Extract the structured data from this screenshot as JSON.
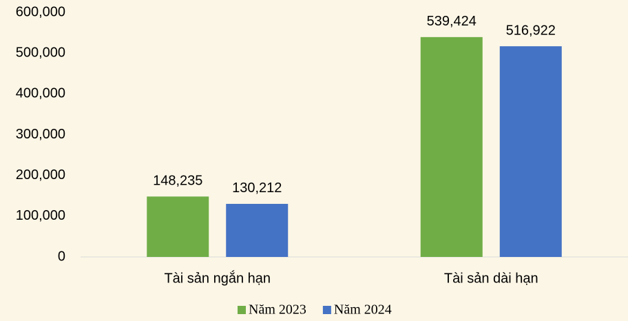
{
  "chart_data": {
    "type": "bar",
    "categories": [
      "Tài sản ngắn hạn",
      "Tài sản dài hạn"
    ],
    "series": [
      {
        "name": "Năm 2023",
        "color": "#70ad47",
        "values": [
          148235,
          539424
        ],
        "value_labels": [
          "148,235",
          "539,424"
        ]
      },
      {
        "name": "Năm 2024",
        "color": "#4472c4",
        "values": [
          130212,
          516922
        ],
        "value_labels": [
          "130,212",
          "516,922"
        ]
      }
    ],
    "ylim": [
      0,
      600000
    ],
    "yticks": [
      0,
      {
        "value": 100000,
        "label": "100,000"
      },
      {
        "value": 200000,
        "label": "200,000"
      },
      {
        "value": 300000,
        "label": "300,000"
      },
      {
        "value": 400000,
        "label": "400,000"
      },
      {
        "value": 500000,
        "label": "500,000"
      },
      {
        "value": 600000,
        "label": "600,000"
      }
    ],
    "legend": "bottom"
  }
}
